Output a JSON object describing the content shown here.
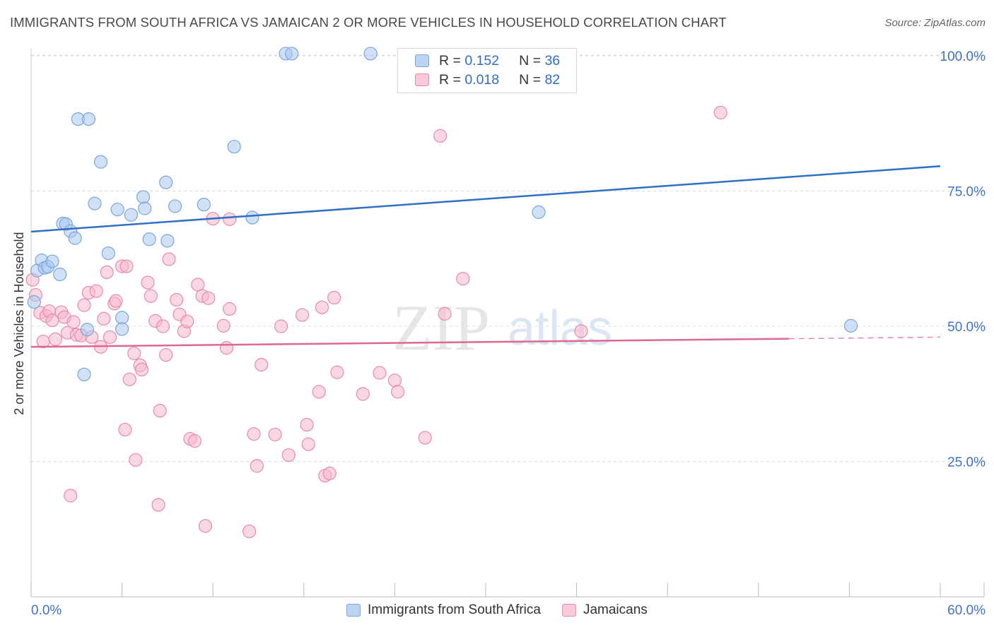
{
  "title": "IMMIGRANTS FROM SOUTH AFRICA VS JAMAICAN 2 OR MORE VEHICLES IN HOUSEHOLD CORRELATION CHART",
  "source": "Source: ZipAtlas.com",
  "watermark": {
    "zip": "ZIP",
    "atlas": "atlas"
  },
  "legend": {
    "r_label": "R =",
    "n_label": "N =",
    "rows": [
      {
        "r": "0.152",
        "n": "36"
      },
      {
        "r": "0.018",
        "n": "82"
      }
    ]
  },
  "colors": {
    "blue_fill": "#aac8ee",
    "blue_stroke": "#7aa6dc",
    "blue_line": "#2f6fc4",
    "pink_fill": "#f6b8cc",
    "pink_stroke": "#e88aa8",
    "pink_line": "#e0688f",
    "tick_label": "#3f74c4"
  },
  "chart_data": {
    "type": "scatter",
    "title": "IMMIGRANTS FROM SOUTH AFRICA VS JAMAICAN 2 OR MORE VEHICLES IN HOUSEHOLD CORRELATION CHART",
    "xlabel": "",
    "ylabel": "2 or more Vehicles in Household",
    "xlim": [
      0,
      60
    ],
    "ylim": [
      0,
      102
    ],
    "x_tick_labels": [
      "0.0%",
      "60.0%"
    ],
    "y_ticks": [
      25,
      50,
      75,
      100
    ],
    "y_tick_labels": [
      "25.0%",
      "50.0%",
      "75.0%",
      "100.0%"
    ],
    "grid": "horizontal dashed",
    "legend_position": "top-center",
    "series": [
      {
        "name": "Immigrants from South Africa",
        "color": "#aac8ee",
        "points": [
          [
            0.2,
            54.5
          ],
          [
            0.4,
            60.3
          ],
          [
            0.7,
            62.2
          ],
          [
            0.9,
            60.8
          ],
          [
            1.1,
            61.0
          ],
          [
            1.4,
            62.0
          ],
          [
            1.9,
            59.6
          ],
          [
            2.1,
            69.0
          ],
          [
            2.3,
            68.9
          ],
          [
            2.6,
            67.6
          ],
          [
            2.9,
            66.3
          ],
          [
            3.1,
            88.3
          ],
          [
            3.8,
            88.3
          ],
          [
            3.5,
            41.1
          ],
          [
            3.7,
            49.4
          ],
          [
            4.2,
            72.7
          ],
          [
            4.6,
            80.4
          ],
          [
            5.1,
            63.5
          ],
          [
            5.7,
            71.6
          ],
          [
            6.0,
            51.6
          ],
          [
            6.0,
            49.5
          ],
          [
            6.6,
            70.6
          ],
          [
            7.4,
            73.9
          ],
          [
            7.5,
            71.8
          ],
          [
            7.8,
            66.1
          ],
          [
            8.9,
            76.6
          ],
          [
            9.0,
            65.8
          ],
          [
            9.5,
            72.2
          ],
          [
            11.4,
            72.5
          ],
          [
            13.4,
            83.2
          ],
          [
            14.6,
            70.1
          ],
          [
            16.8,
            100.4
          ],
          [
            17.2,
            100.4
          ],
          [
            22.4,
            100.4
          ],
          [
            33.5,
            71.1
          ],
          [
            54.1,
            50.1
          ]
        ],
        "trend_line": {
          "x": [
            0,
            60
          ],
          "y": [
            67.5,
            79.6
          ]
        }
      },
      {
        "name": "Jamaicans",
        "color": "#f6b8cc",
        "points": [
          [
            0.1,
            58.6
          ],
          [
            0.3,
            55.8
          ],
          [
            0.6,
            52.5
          ],
          [
            0.8,
            47.2
          ],
          [
            1.0,
            51.9
          ],
          [
            1.2,
            52.8
          ],
          [
            1.4,
            51.1
          ],
          [
            1.6,
            47.6
          ],
          [
            2.0,
            52.6
          ],
          [
            2.2,
            51.7
          ],
          [
            2.4,
            48.8
          ],
          [
            2.6,
            18.7
          ],
          [
            2.8,
            50.8
          ],
          [
            3.0,
            48.4
          ],
          [
            3.3,
            48.3
          ],
          [
            3.5,
            53.9
          ],
          [
            3.8,
            56.2
          ],
          [
            4.0,
            48.0
          ],
          [
            4.3,
            56.5
          ],
          [
            4.6,
            46.2
          ],
          [
            4.8,
            51.4
          ],
          [
            5.0,
            60.0
          ],
          [
            5.2,
            48.0
          ],
          [
            5.5,
            54.2
          ],
          [
            5.6,
            54.7
          ],
          [
            6.0,
            61.1
          ],
          [
            6.2,
            30.9
          ],
          [
            6.3,
            61.1
          ],
          [
            6.5,
            40.2
          ],
          [
            6.8,
            45.0
          ],
          [
            6.9,
            25.3
          ],
          [
            7.2,
            42.8
          ],
          [
            7.3,
            42.0
          ],
          [
            7.7,
            58.1
          ],
          [
            7.9,
            55.6
          ],
          [
            8.2,
            51.0
          ],
          [
            8.4,
            17.0
          ],
          [
            8.5,
            34.4
          ],
          [
            8.7,
            50.0
          ],
          [
            8.9,
            44.7
          ],
          [
            9.1,
            62.4
          ],
          [
            9.6,
            54.9
          ],
          [
            9.8,
            52.2
          ],
          [
            10.1,
            49.1
          ],
          [
            10.3,
            50.9
          ],
          [
            10.5,
            29.2
          ],
          [
            10.8,
            28.8
          ],
          [
            11.0,
            57.7
          ],
          [
            11.3,
            55.6
          ],
          [
            11.5,
            13.1
          ],
          [
            11.7,
            55.2
          ],
          [
            12.0,
            69.9
          ],
          [
            12.7,
            50.1
          ],
          [
            12.9,
            46.0
          ],
          [
            13.1,
            53.2
          ],
          [
            13.1,
            69.8
          ],
          [
            14.4,
            12.1
          ],
          [
            14.7,
            30.1
          ],
          [
            14.9,
            24.2
          ],
          [
            15.2,
            42.9
          ],
          [
            16.1,
            30.0
          ],
          [
            16.5,
            50.0
          ],
          [
            17.0,
            26.2
          ],
          [
            17.9,
            52.1
          ],
          [
            18.2,
            31.8
          ],
          [
            18.3,
            28.2
          ],
          [
            19.0,
            37.9
          ],
          [
            19.2,
            53.5
          ],
          [
            19.4,
            22.4
          ],
          [
            19.7,
            22.8
          ],
          [
            20.0,
            55.3
          ],
          [
            20.2,
            41.5
          ],
          [
            21.9,
            37.5
          ],
          [
            23.0,
            41.4
          ],
          [
            24.0,
            40.0
          ],
          [
            24.2,
            37.9
          ],
          [
            26.0,
            29.4
          ],
          [
            27.0,
            85.2
          ],
          [
            27.3,
            52.3
          ],
          [
            28.5,
            58.8
          ],
          [
            36.3,
            49.1
          ],
          [
            45.5,
            89.5
          ]
        ],
        "trend_line": {
          "x": [
            0,
            50
          ],
          "y": [
            46.2,
            47.7
          ],
          "dashed_extension": {
            "x": [
              50,
              60
            ],
            "y": [
              47.7,
              48.0
            ]
          }
        }
      }
    ]
  }
}
